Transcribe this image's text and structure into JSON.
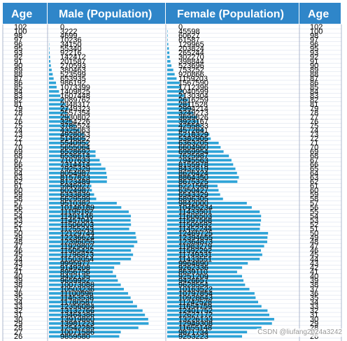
{
  "chart_data": {
    "type": "table",
    "columns": [
      "Age",
      "Male (Population)",
      "Female (Population)",
      "Age"
    ],
    "rows": [
      {
        "age": "102",
        "male": 0,
        "female": 0
      },
      {
        "age": "100",
        "male": 3222,
        "female": 45598
      },
      {
        "age": "98",
        "male": 4699,
        "female": 60627
      },
      {
        "age": "97",
        "male": 10236,
        "female": 61587
      },
      {
        "age": "96",
        "male": 34150,
        "female": 129965
      },
      {
        "age": "95",
        "male": 55340,
        "female": 203824
      },
      {
        "age": "93",
        "male": 92216,
        "female": 265244
      },
      {
        "age": "92",
        "male": 142412,
        "female": 302270
      },
      {
        "age": "91",
        "male": 201587,
        "female": 398844
      },
      {
        "age": "90",
        "male": 270593,
        "female": 523696
      },
      {
        "age": "89",
        "male": 380463,
        "female": 753252
      },
      {
        "age": "88",
        "male": 523599,
        "female": 920866
      },
      {
        "age": "87",
        "male": 653935,
        "female": 1159203
      },
      {
        "age": "86",
        "male": 986192,
        "female": 1567590
      },
      {
        "age": "85",
        "male": 1073399,
        "female": 1712396
      },
      {
        "age": "84",
        "male": 1409825,
        "female": 2040599
      },
      {
        "age": "83",
        "male": 1607448,
        "female": 2130304
      },
      {
        "age": "82",
        "male": 2089762,
        "female": 2616259
      },
      {
        "age": "81",
        "male": 2348317,
        "female": 2811528
      },
      {
        "age": "79",
        "male": 2749323,
        "female": 2994214
      },
      {
        "age": "78",
        "male": 2557354,
        "female": 3249273
      },
      {
        "age": "77",
        "male": 2930802,
        "female": 3699826
      },
      {
        "age": "76",
        "male": 3254226,
        "female": 3923167
      },
      {
        "age": "75",
        "male": 3785524,
        "female": 4255833
      },
      {
        "age": "74",
        "male": 4325063,
        "female": 4572841
      },
      {
        "age": "73",
        "male": 4928053,
        "female": 5218329
      },
      {
        "age": "72",
        "male": 5146052,
        "female": 5382905
      },
      {
        "age": "71",
        "male": 5540952,
        "female": 6363205
      },
      {
        "age": "70",
        "male": 5655064,
        "female": 6604960
      },
      {
        "age": "69",
        "male": 6528692,
        "female": 6969954
      },
      {
        "age": "68",
        "male": 6536614,
        "female": 7625987
      },
      {
        "age": "67",
        "male": 7107633,
        "female": 7945563
      },
      {
        "age": "66",
        "male": 7314414,
        "female": 8155978
      },
      {
        "age": "65",
        "male": 7925329,
        "female": 8432819
      },
      {
        "age": "64",
        "male": 8054987,
        "female": 8626424
      },
      {
        "age": "63",
        "male": 8157823,
        "female": 8864350
      },
      {
        "age": "62",
        "male": 8123489,
        "female": 8675325
      },
      {
        "age": "61",
        "male": 5946927,
        "female": 6221566
      },
      {
        "age": "60",
        "male": 6024987,
        "female": 6350427
      },
      {
        "age": "59",
        "male": 6333839,
        "female": 6543329
      },
      {
        "age": "58",
        "male": 6629599,
        "female": 6896305
      },
      {
        "age": "57",
        "male": 9510382,
        "female": 9842000
      },
      {
        "age": "56",
        "male": 10146189,
        "female": 10455234
      },
      {
        "age": "55",
        "male": 11195182,
        "female": 11433501
      },
      {
        "age": "54",
        "male": 11491146,
        "female": 11606503
      },
      {
        "age": "53",
        "male": 11457041,
        "female": 11597568
      },
      {
        "age": "52",
        "male": 11506003,
        "female": 11509592
      },
      {
        "age": "51",
        "male": 11255243,
        "female": 11452244
      },
      {
        "age": "50",
        "male": 12129744,
        "female": 12469725
      },
      {
        "age": "49",
        "male": 12236624,
        "female": 12394655
      },
      {
        "age": "48",
        "male": 12396055,
        "female": 12364873
      },
      {
        "age": "47",
        "male": 11929802,
        "female": 11983279
      },
      {
        "age": "46",
        "male": 11505422,
        "female": 11592292
      },
      {
        "age": "45",
        "male": 11796873,
        "female": 11749331
      },
      {
        "age": "44",
        "male": 11503054,
        "female": 11433551
      },
      {
        "age": "43",
        "male": 9995977,
        "female": 9964890
      },
      {
        "age": "42",
        "male": 9149208,
        "female": 9262336
      },
      {
        "age": "41",
        "male": 8956756,
        "female": 8639110
      },
      {
        "age": "40",
        "male": 9432135,
        "female": 9251209
      },
      {
        "age": "39",
        "male": 9659952,
        "female": 9426657
      },
      {
        "age": "38",
        "male": 10073088,
        "female": 9628554
      },
      {
        "age": "37",
        "male": 10503236,
        "female": 10163522
      },
      {
        "age": "36",
        "male": 11100596,
        "female": 10797854
      },
      {
        "age": "35",
        "male": 11453538,
        "female": 10928643
      },
      {
        "age": "34",
        "male": 11780587,
        "female": 11242528
      },
      {
        "age": "33",
        "male": 12356084,
        "female": 11654759
      },
      {
        "age": "32",
        "male": 13132766,
        "female": 12401752
      },
      {
        "age": "31",
        "male": 13464386,
        "female": 12627172
      },
      {
        "age": "30",
        "male": 13919860,
        "female": 13226133
      },
      {
        "age": "29",
        "male": 13981223,
        "female": 12949308
      },
      {
        "age": "28",
        "male": 12542285,
        "female": 11655148
      },
      {
        "age": "27",
        "male": 10071586,
        "female": 9871734
      },
      {
        "age": "26",
        "male": 9859580,
        "female": 9253223
      }
    ],
    "xlim": [
      0,
      16000000
    ],
    "grid": true
  },
  "watermark": "CSDN @liufang2024a3242",
  "colors": {
    "header_bg": "#2f86c9",
    "header_text": "#ffffff",
    "bar": "#2ea3d7",
    "grid": "#dde3ef",
    "border": "#9aa6c2",
    "text": "#000000"
  }
}
